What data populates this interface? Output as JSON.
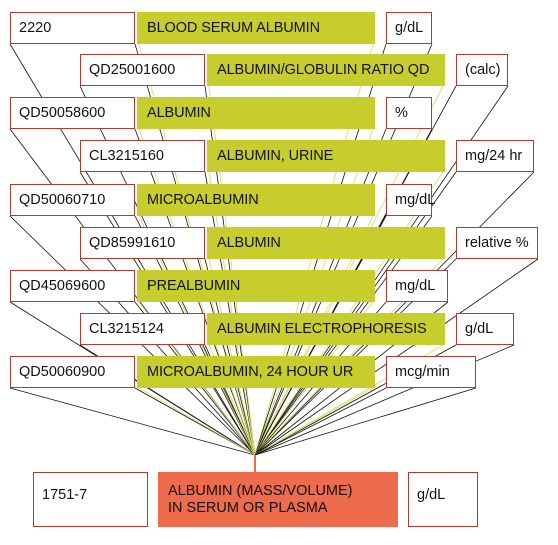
{
  "source_rows": [
    {
      "code": "2220",
      "name": "BLOOD SERUM ALBUMIN",
      "unit": "g/dL"
    },
    {
      "code": "QD25001600",
      "name": "ALBUMIN/GLOBULIN RATIO QD",
      "unit": "(calc)"
    },
    {
      "code": "QD50058600",
      "name": "ALBUMIN",
      "unit": "%"
    },
    {
      "code": "CL3215160",
      "name": "ALBUMIN, URINE",
      "unit": "mg/24 hr"
    },
    {
      "code": "QD50060710",
      "name": "MICROALBUMIN",
      "unit": "mg/dL"
    },
    {
      "code": "QD85991610",
      "name": "ALBUMIN",
      "unit": "relative %"
    },
    {
      "code": "QD45069600",
      "name": "PREALBUMIN",
      "unit": "mg/dL"
    },
    {
      "code": "CL3215124",
      "name": "ALBUMIN ELECTROPHORESIS",
      "unit": "g/dL"
    },
    {
      "code": "QD50060900",
      "name": "MICROALBUMIN, 24 HOUR UR",
      "unit": "mcg/min"
    }
  ],
  "target": {
    "code": "1751-7",
    "name_line1": "ALBUMIN (MASS/VOLUME)",
    "name_line2": "IN SERUM OR PLASMA",
    "unit": "g/dL"
  },
  "colors": {
    "name_fill": "#c8cd2e",
    "target_fill": "#ee6b4d",
    "box_border": "#b03a2e",
    "black_line": "#111111",
    "yellow_line": "#d9dc6a"
  }
}
